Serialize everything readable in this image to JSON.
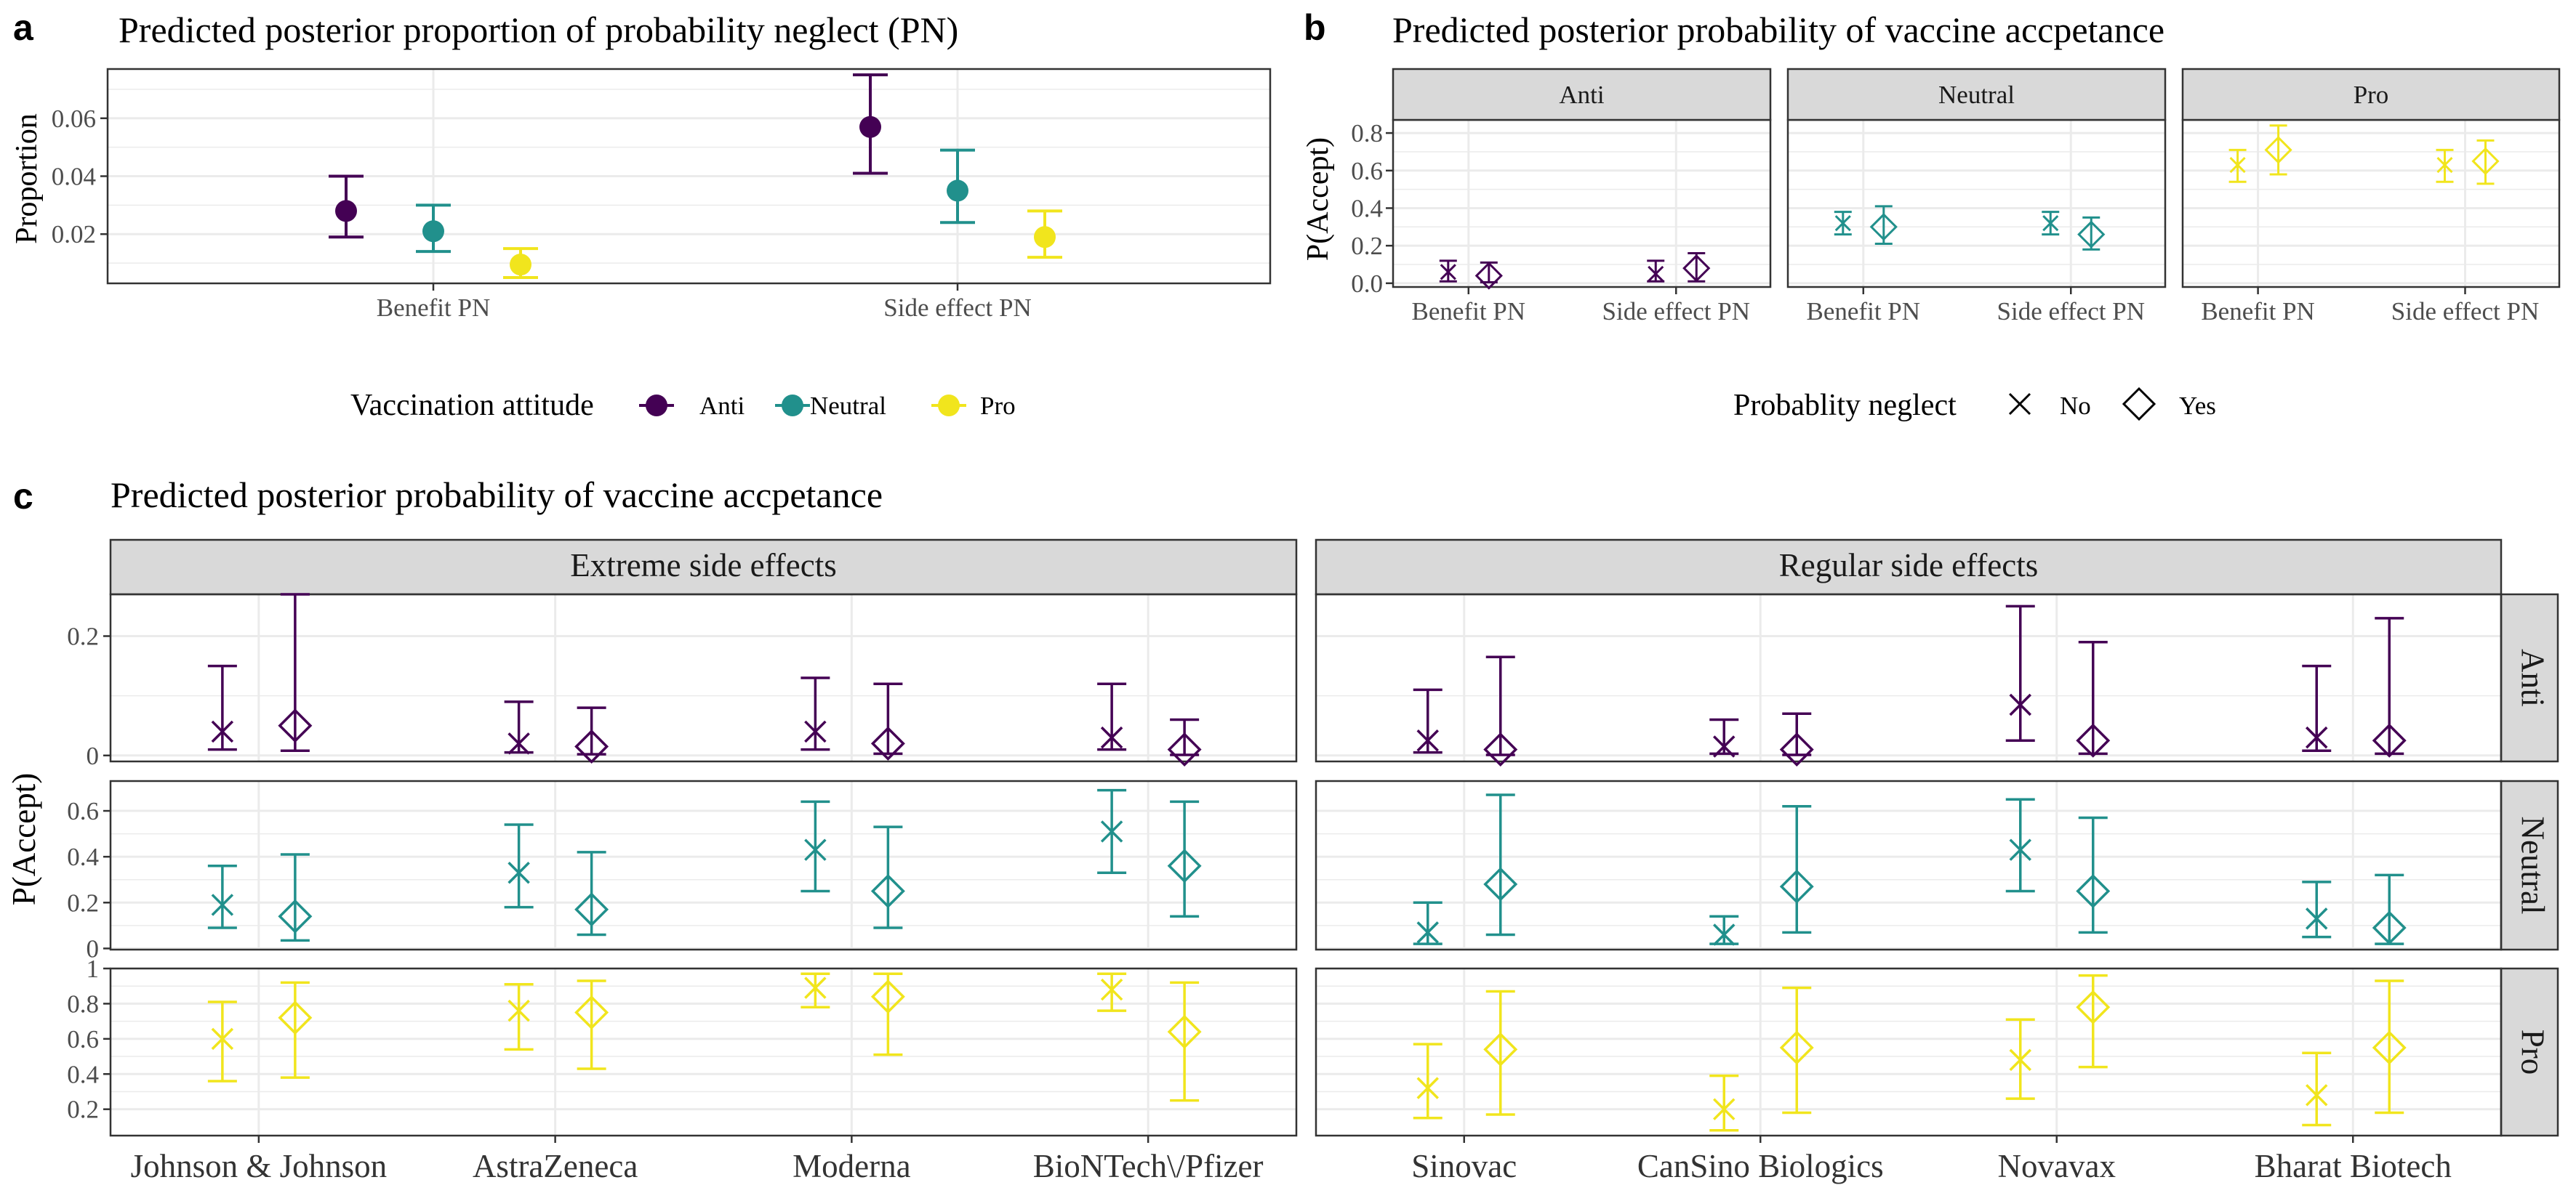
{
  "colors": {
    "Anti": "#440154",
    "Neutral": "#21908C",
    "Pro": "#F1E51D"
  },
  "panel_a": {
    "letter": "a",
    "chart_data": {
      "type": "scatter",
      "title": "Predicted posterior proportion of probability neglect (PN)",
      "ylabel": "Proportion",
      "xlabel": "",
      "categories": [
        "Benefit PN",
        "Side effect PN"
      ],
      "ylim": [
        0.003,
        0.077
      ],
      "yticks": [
        "0.02",
        "0.04",
        "0.06"
      ],
      "series": [
        {
          "name": "Anti",
          "mean": [
            0.028,
            0.057
          ],
          "lower": [
            0.019,
            0.041
          ],
          "upper": [
            0.04,
            0.075
          ]
        },
        {
          "name": "Neutral",
          "mean": [
            0.021,
            0.035
          ],
          "lower": [
            0.014,
            0.024
          ],
          "upper": [
            0.03,
            0.049
          ]
        },
        {
          "name": "Pro",
          "mean": [
            0.0095,
            0.019
          ],
          "lower": [
            0.005,
            0.012
          ],
          "upper": [
            0.015,
            0.028
          ]
        }
      ]
    }
  },
  "legend_attitude": {
    "title": "Vaccination attitude",
    "items": [
      "Anti",
      "Neutral",
      "Pro"
    ]
  },
  "panel_b": {
    "letter": "b",
    "chart_data": {
      "type": "scatter",
      "title": "Predicted posterior probability of vaccine accpetance",
      "ylabel": "P(Accept)",
      "categories": [
        "Benefit PN",
        "Side effect PN"
      ],
      "ylim": [
        -0.02,
        0.87
      ],
      "yticks": [
        "0.0",
        "0.2",
        "0.4",
        "0.6",
        "0.8"
      ],
      "facets": [
        {
          "name": "Anti",
          "no": {
            "mean": [
              0.06,
              0.05
            ],
            "lower": [
              0.01,
              0.01
            ],
            "upper": [
              0.12,
              0.12
            ]
          },
          "yes": {
            "mean": [
              0.04,
              0.08
            ],
            "lower": [
              0.005,
              0.01
            ],
            "upper": [
              0.11,
              0.16
            ]
          }
        },
        {
          "name": "Neutral",
          "no": {
            "mean": [
              0.32,
              0.32
            ],
            "lower": [
              0.26,
              0.26
            ],
            "upper": [
              0.38,
              0.38
            ]
          },
          "yes": {
            "mean": [
              0.3,
              0.26
            ],
            "lower": [
              0.21,
              0.18
            ],
            "upper": [
              0.41,
              0.35
            ]
          }
        },
        {
          "name": "Pro",
          "no": {
            "mean": [
              0.63,
              0.63
            ],
            "lower": [
              0.54,
              0.54
            ],
            "upper": [
              0.71,
              0.71
            ]
          },
          "yes": {
            "mean": [
              0.71,
              0.65
            ],
            "lower": [
              0.58,
              0.53
            ],
            "upper": [
              0.84,
              0.76
            ]
          }
        }
      ]
    }
  },
  "legend_neglect": {
    "title": "Probablity neglect",
    "items": [
      "No",
      "Yes"
    ]
  },
  "panel_c": {
    "letter": "c",
    "chart_data": {
      "type": "scatter",
      "title": "Predicted posterior probability of vaccine accpetance",
      "ylabel": "P(Accept)",
      "columns": [
        {
          "name": "Extreme side effects",
          "categories": [
            "Johnson & Johnson",
            "AstraZeneca",
            "Moderna",
            "BioNTech\\/Pfizer"
          ]
        },
        {
          "name": "Regular side effects",
          "categories": [
            "Sinovac",
            "CanSino Biologics",
            "Novavax",
            "Bharat Biotech"
          ]
        }
      ],
      "rows": [
        {
          "name": "Anti",
          "ylim": [
            -0.01,
            0.27
          ],
          "yticks": [
            {
              "v": 0,
              "label": "0"
            },
            {
              "v": 0.2,
              "label": "0.2"
            }
          ],
          "no": {
            "mean": [
              0.04,
              0.02,
              0.04,
              0.03,
              0.025,
              0.015,
              0.085,
              0.03
            ],
            "lower": [
              0.01,
              0.005,
              0.01,
              0.01,
              0.005,
              0.003,
              0.025,
              0.008
            ],
            "upper": [
              0.15,
              0.09,
              0.13,
              0.12,
              0.11,
              0.06,
              0.25,
              0.15
            ]
          },
          "yes": {
            "mean": [
              0.05,
              0.015,
              0.02,
              0.01,
              0.01,
              0.01,
              0.025,
              0.025
            ],
            "lower": [
              0.008,
              0.002,
              0.003,
              0.001,
              0.001,
              0.001,
              0.003,
              0.003
            ],
            "upper": [
              0.27,
              0.08,
              0.12,
              0.06,
              0.165,
              0.07,
              0.19,
              0.23
            ]
          }
        },
        {
          "name": "Neutral",
          "ylim": [
            -0.005,
            0.73
          ],
          "yticks": [
            {
              "v": 0,
              "label": "0"
            },
            {
              "v": 0.2,
              "label": "0.2"
            },
            {
              "v": 0.4,
              "label": "0.4"
            },
            {
              "v": 0.6,
              "label": "0.6"
            }
          ],
          "no": {
            "mean": [
              0.19,
              0.33,
              0.43,
              0.51,
              0.07,
              0.06,
              0.43,
              0.13
            ],
            "lower": [
              0.09,
              0.18,
              0.25,
              0.33,
              0.02,
              0.02,
              0.25,
              0.05
            ],
            "upper": [
              0.36,
              0.54,
              0.64,
              0.69,
              0.2,
              0.14,
              0.65,
              0.29
            ]
          },
          "yes": {
            "mean": [
              0.14,
              0.17,
              0.25,
              0.36,
              0.28,
              0.27,
              0.25,
              0.09
            ],
            "lower": [
              0.035,
              0.06,
              0.09,
              0.14,
              0.06,
              0.07,
              0.07,
              0.02
            ],
            "upper": [
              0.41,
              0.42,
              0.53,
              0.64,
              0.67,
              0.62,
              0.57,
              0.32
            ]
          }
        },
        {
          "name": "Pro",
          "ylim": [
            0.05,
            1.0
          ],
          "yticks": [
            {
              "v": 0.2,
              "label": "0.2"
            },
            {
              "v": 0.4,
              "label": "0.4"
            },
            {
              "v": 0.6,
              "label": "0.6"
            },
            {
              "v": 0.8,
              "label": "0.8"
            },
            {
              "v": 1.0,
              "label": "1"
            }
          ],
          "no": {
            "mean": [
              0.6,
              0.76,
              0.89,
              0.88,
              0.32,
              0.2,
              0.48,
              0.28
            ],
            "lower": [
              0.36,
              0.54,
              0.78,
              0.76,
              0.15,
              0.08,
              0.26,
              0.11
            ],
            "upper": [
              0.81,
              0.91,
              0.97,
              0.97,
              0.57,
              0.39,
              0.71,
              0.52
            ]
          },
          "yes": {
            "mean": [
              0.72,
              0.75,
              0.84,
              0.64,
              0.54,
              0.55,
              0.78,
              0.55
            ],
            "lower": [
              0.38,
              0.43,
              0.51,
              0.25,
              0.17,
              0.18,
              0.44,
              0.18
            ],
            "upper": [
              0.92,
              0.93,
              0.97,
              0.92,
              0.87,
              0.89,
              0.96,
              0.93
            ]
          }
        }
      ]
    }
  }
}
